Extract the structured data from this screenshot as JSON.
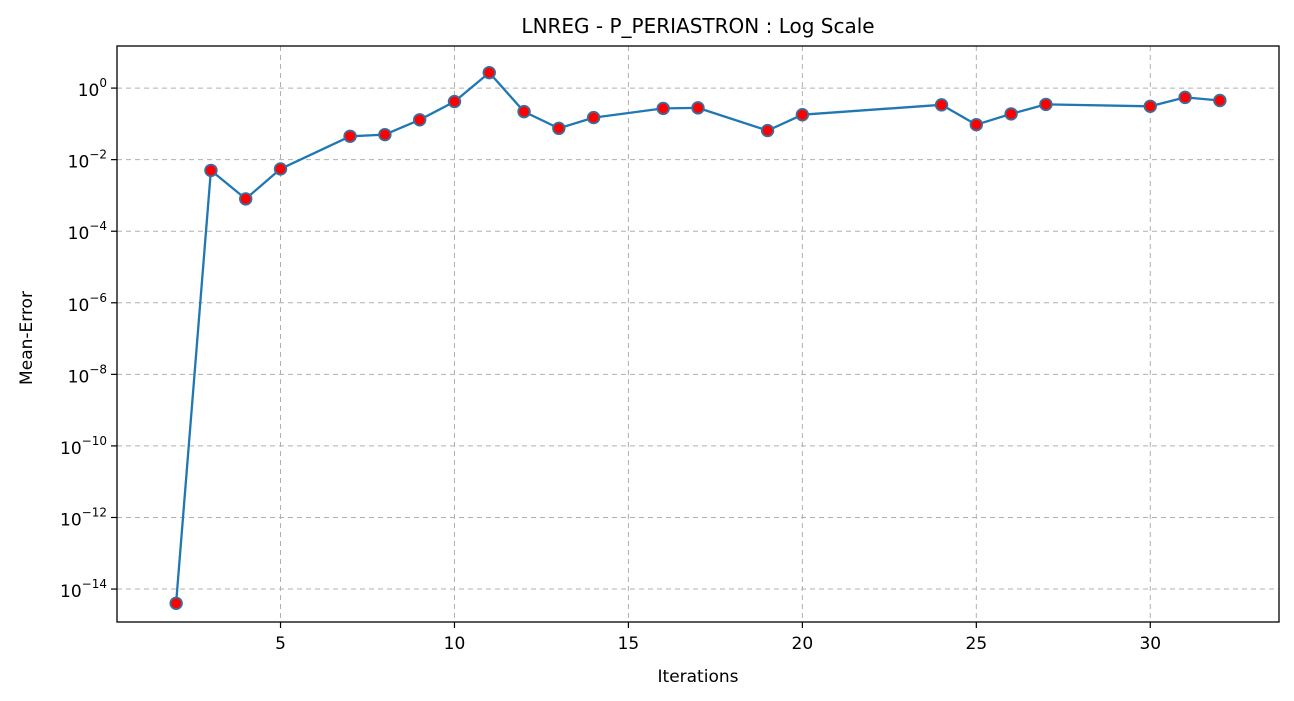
{
  "chart_data": {
    "type": "line",
    "title": "LNREG - P_PERIASTRON : Log Scale",
    "xlabel": "Iterations",
    "ylabel": "Mean-Error",
    "x_ticks": [
      5,
      10,
      15,
      20,
      25,
      30
    ],
    "x_tick_labels": [
      "5",
      "10",
      "15",
      "20",
      "25",
      "30"
    ],
    "y_scale": "log",
    "y_ticks": [
      {
        "base": "10",
        "exp": "0",
        "value": 1
      },
      {
        "base": "10",
        "exp": "−2",
        "value": 0.01
      },
      {
        "base": "10",
        "exp": "−4",
        "value": 0.0001
      },
      {
        "base": "10",
        "exp": "−6",
        "value": 1e-06
      },
      {
        "base": "10",
        "exp": "−8",
        "value": 1e-08
      },
      {
        "base": "10",
        "exp": "−10",
        "value": 1e-10
      },
      {
        "base": "10",
        "exp": "−12",
        "value": 1e-12
      },
      {
        "base": "10",
        "exp": "−14",
        "value": 1e-14
      }
    ],
    "xlim": [
      0.3,
      33.7
    ],
    "ylim": [
      1.2e-15,
      15
    ],
    "grid": true,
    "line_color": "#1f77b4",
    "marker_face_color": "#ff0000",
    "marker_edge_color": "#3c6e9c",
    "series": [
      {
        "x": [
          2,
          3,
          4,
          5,
          7,
          8,
          9,
          10,
          11,
          12,
          13,
          14,
          16,
          17,
          19,
          20,
          24,
          25,
          26,
          27,
          30,
          31,
          32
        ],
        "y": [
          4e-15,
          0.005,
          0.0008,
          0.0055,
          0.045,
          0.05,
          0.13,
          0.42,
          2.7,
          0.22,
          0.075,
          0.15,
          0.27,
          0.28,
          0.065,
          0.18,
          0.34,
          0.095,
          0.19,
          0.35,
          0.31,
          0.55,
          0.45
        ]
      }
    ]
  }
}
